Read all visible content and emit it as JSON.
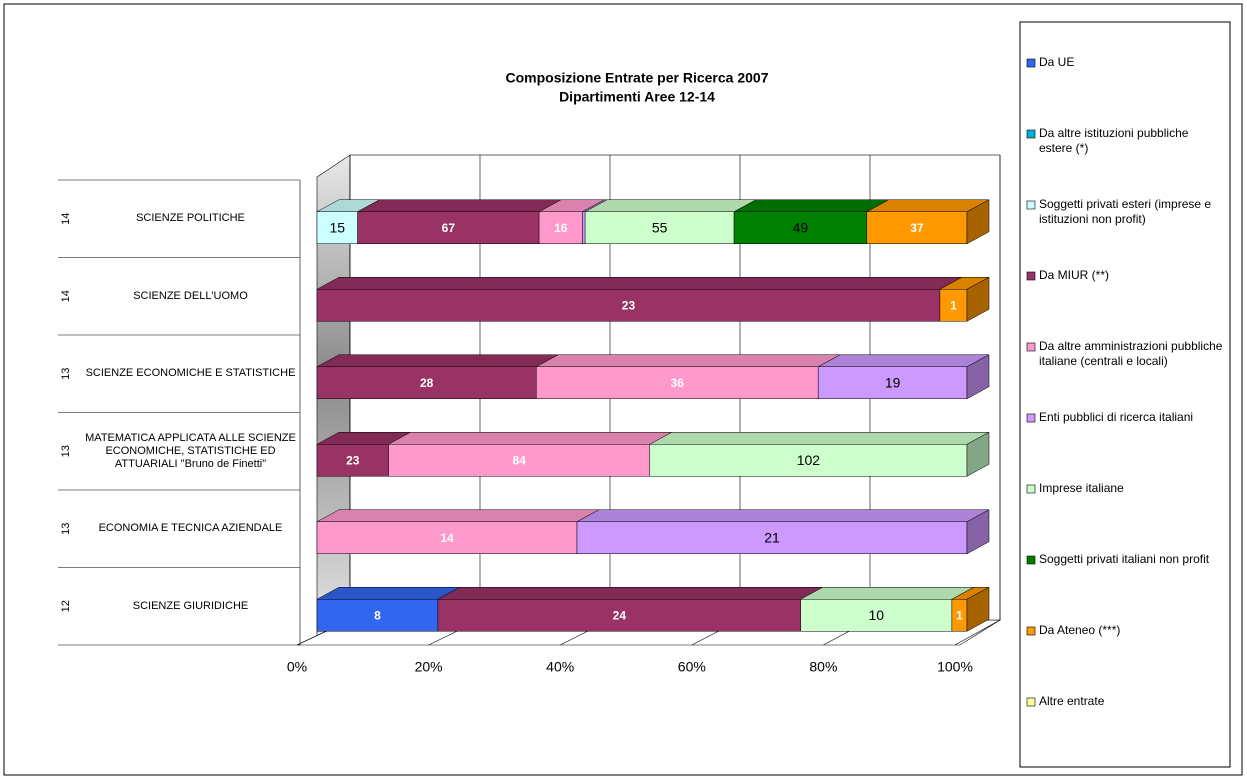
{
  "chart_data": {
    "type": "stacked_bar_100",
    "title": "Composizione Entrate per Ricerca 2007",
    "subtitle": "Dipartimenti Aree 12-14",
    "categories": [
      "SCIENZE POLITICHE",
      "SCIENZE DELL'UOMO",
      "SCIENZE ECONOMICHE E STATISTICHE",
      "MATEMATICA APPLICATA ALLE SCIENZE ECONOMICHE, STATISTICHE ED ATTUARIALI \"Bruno de Finetti\"",
      "ECONOMIA E TECNICA AZIENDALE",
      "SCIENZE GIURIDICHE"
    ],
    "groups": [
      "14",
      "14",
      "13",
      "13",
      "13",
      "12"
    ],
    "xlim": [
      0,
      100
    ],
    "xticks": [
      {
        "value": 0,
        "label": "0%"
      },
      {
        "value": 20,
        "label": "20%"
      },
      {
        "value": 40,
        "label": "40%"
      },
      {
        "value": 60,
        "label": "60%"
      },
      {
        "value": 80,
        "label": "80%"
      },
      {
        "value": 100,
        "label": "100%"
      }
    ],
    "grid": true,
    "legend": "right",
    "series": [
      {
        "name": "Da UE",
        "color": "#3366ee",
        "label_color": "#ffffff",
        "values": [
          null,
          null,
          null,
          null,
          null,
          8
        ]
      },
      {
        "name": "Da altre istituzioni pubbliche estere (*)",
        "color": "#00b0d8",
        "label_color": "#000000",
        "values": [
          null,
          null,
          null,
          null,
          null,
          null
        ]
      },
      {
        "name": "Soggetti privati esteri (imprese e istituzioni non profit)",
        "color": "#ccffff",
        "label_color": "#000000",
        "values": [
          15,
          null,
          null,
          null,
          null,
          null
        ]
      },
      {
        "name": "Da MIUR (**)",
        "color": "#993366",
        "label_color": "#ffffff",
        "values": [
          67,
          23,
          28,
          23,
          null,
          24
        ]
      },
      {
        "name": "Da altre amministrazioni pubbliche italiane (centrali e locali)",
        "color": "#ff99cc",
        "label_color": "#ffffff",
        "values": [
          16,
          null,
          36,
          84,
          14,
          null
        ]
      },
      {
        "name": "Enti pubblici di ricerca italiani",
        "color": "#cc99ff",
        "label_color": "#000000",
        "values": [
          1,
          null,
          19,
          null,
          21,
          null
        ],
        "value_labels": [
          null,
          null,
          "19",
          null,
          "21",
          null
        ]
      },
      {
        "name": "Imprese italiane",
        "color": "#ccffcc",
        "label_color": "#000000",
        "values": [
          55,
          null,
          null,
          102,
          null,
          10
        ]
      },
      {
        "name": "Soggetti privati italiani non profit",
        "color": "#008000",
        "label_color": "#000000",
        "values": [
          49,
          null,
          null,
          null,
          null,
          null
        ]
      },
      {
        "name": "Da Ateneo (***)",
        "color": "#ff9900",
        "label_color": "#ffffff",
        "values": [
          37,
          1,
          null,
          null,
          null,
          1
        ]
      },
      {
        "name": "Altre entrate",
        "color": "#ffff99",
        "label_color": "#000000",
        "values": [
          null,
          null,
          null,
          null,
          null,
          null
        ]
      }
    ]
  }
}
